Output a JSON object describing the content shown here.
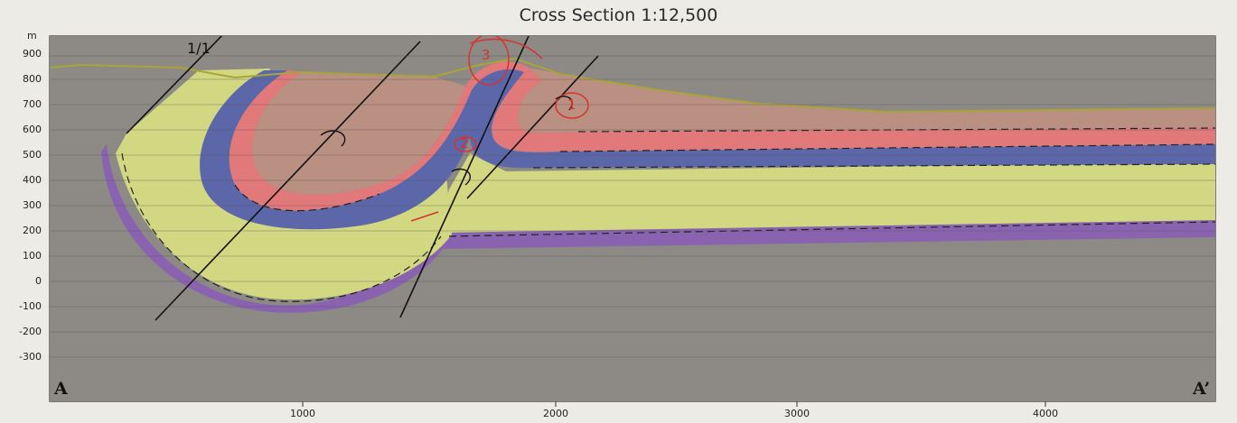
{
  "title": "Cross Section 1:12,500",
  "y_axis": {
    "unit": "m",
    "ticks": [
      "900",
      "800",
      "700",
      "600",
      "500",
      "400",
      "300",
      "200",
      "100",
      "0",
      "-100",
      "-200",
      "-300"
    ]
  },
  "x_axis": {
    "ticks": [
      "1000",
      "2000",
      "3000",
      "4000"
    ]
  },
  "section_ends": {
    "start": "A",
    "end": "A’"
  },
  "fault_label": "1/1",
  "annotations": [
    "3",
    "1",
    "2"
  ],
  "colors": {
    "basement_gray": "#8d8a86",
    "purple_layer": "#8a63b0",
    "green_layer": "#d2d882",
    "blue_layer": "#5b67a8",
    "red_layer": "#e1787a",
    "brown_layer": "#b99082",
    "annotation_red": "#d8322e"
  }
}
